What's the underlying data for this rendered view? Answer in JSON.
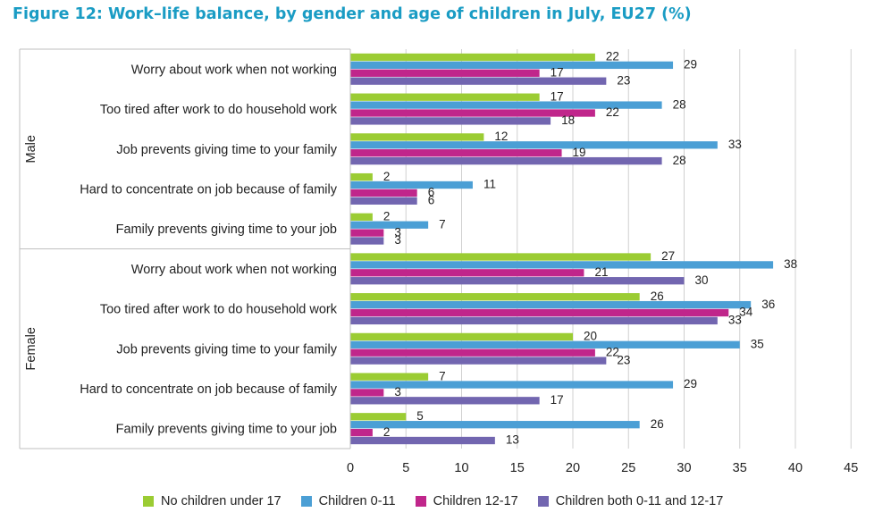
{
  "title": "Figure 12: Work–life balance, by gender and age of children in July, EU27 (%)",
  "colors": {
    "no_children": "#9bcc33",
    "children_0_11": "#4b9fd5",
    "children_12_17": "#c0268b",
    "children_both": "#7266b0",
    "grid": "#d0d0d0",
    "axis": "#bfbfbf"
  },
  "chart_data": {
    "type": "bar",
    "orientation": "horizontal",
    "groups": [
      "Male",
      "Female"
    ],
    "categories": [
      "Worry about work when not working",
      "Too tired after work to do household work",
      "Job prevents giving time to your family",
      "Hard to concentrate on job because of family",
      "Family prevents giving time to your job"
    ],
    "series": [
      {
        "name": "No children under 17",
        "color": "#9bcc33",
        "values": {
          "Male": [
            22,
            17,
            12,
            2,
            2
          ],
          "Female": [
            27,
            26,
            20,
            7,
            5
          ]
        }
      },
      {
        "name": "Children 0-11",
        "color": "#4b9fd5",
        "values": {
          "Male": [
            29,
            28,
            33,
            11,
            7
          ],
          "Female": [
            38,
            36,
            35,
            29,
            26
          ]
        }
      },
      {
        "name": "Children 12-17",
        "color": "#c0268b",
        "values": {
          "Male": [
            17,
            22,
            19,
            6,
            3
          ],
          "Female": [
            21,
            34,
            22,
            3,
            2
          ]
        }
      },
      {
        "name": "Children both 0-11 and 12-17",
        "color": "#7266b0",
        "values": {
          "Male": [
            23,
            18,
            28,
            6,
            3
          ],
          "Female": [
            30,
            33,
            23,
            17,
            13
          ]
        }
      }
    ],
    "xlim": [
      0,
      45
    ],
    "xticks": [
      0,
      5,
      10,
      15,
      20,
      25,
      30,
      35,
      40,
      45
    ],
    "grid": true,
    "legend_position": "bottom"
  }
}
